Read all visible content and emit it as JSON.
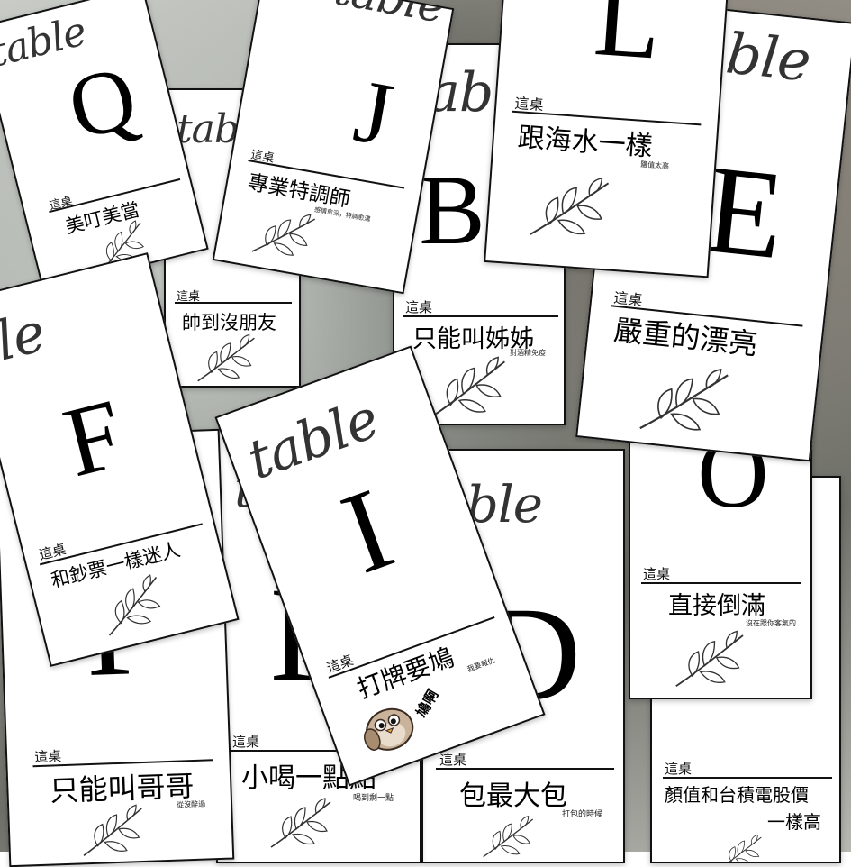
{
  "cards": {
    "q": {
      "script": "table",
      "letter": "Q",
      "label": "這桌",
      "title": "美叮美當",
      "note": ""
    },
    "t2": {
      "script": "table",
      "label": "這桌",
      "title": "帥到沒朋友",
      "note": ""
    },
    "j": {
      "script": "table",
      "letter": "J",
      "label": "這桌",
      "title": "專業特調師",
      "note": "感情愈深，特調愈濃"
    },
    "b": {
      "script": "table",
      "label": "這桌",
      "title": "只能叫姊姊",
      "note": "對酒精免疫"
    },
    "l": {
      "letter": "L",
      "label": "這桌",
      "title": "跟海水一樣",
      "note": "鹽值太高"
    },
    "e": {
      "script": "ble",
      "letter": "E",
      "label": "這桌",
      "title": "嚴重的漂亮",
      "note": ""
    },
    "f": {
      "script": "ble",
      "letter": "F",
      "label": "這桌",
      "title": "和鈔票一樣迷人",
      "note": ""
    },
    "i": {
      "script": "table",
      "letter": "I",
      "label": "這桌",
      "title": "打牌要鳩",
      "note": "我要報仇",
      "sticker": "鳩啊"
    },
    "d": {
      "script": "ble",
      "letter": "D",
      "label": "這桌",
      "title": "包最大包",
      "note": "打包的時候"
    },
    "o": {
      "letter": "O",
      "label": "這桌",
      "title": "直接倒滿",
      "note": "沒在跟你客氣的"
    },
    "h": {
      "label": "這桌",
      "title": "顏值和台積電股價",
      "title2": "一樣高"
    },
    "p": {
      "letter": "P",
      "label": "這桌",
      "title": "只能叫哥哥",
      "note": "從沒醉過"
    },
    "k": {
      "script": "ta",
      "letter": "K",
      "label": "這桌",
      "title": "小喝一點點",
      "note": "喝到剩一點"
    }
  },
  "icons": [
    "leaf-branch-icon",
    "bird-sticker-icon"
  ]
}
